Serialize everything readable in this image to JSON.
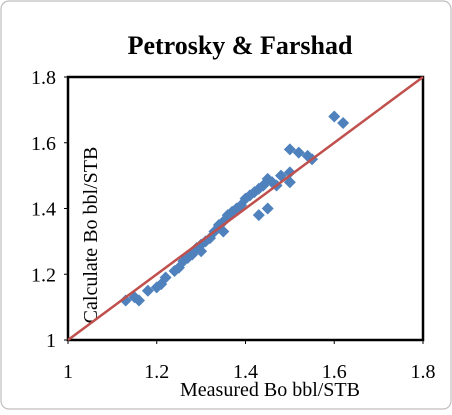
{
  "chart_data": {
    "type": "scatter",
    "title": "Petrosky & Farshad",
    "x_label": "Measured Bo bbl/STB",
    "y_label": "Calculate Bo bbl/STB",
    "xlim": [
      1,
      1.8
    ],
    "ylim": [
      1,
      1.8
    ],
    "xticks": [
      1,
      1.2,
      1.4,
      1.6,
      1.8
    ],
    "yticks": [
      1,
      1.2,
      1.4,
      1.6,
      1.8
    ],
    "grid": false,
    "color": "#4f81bd",
    "x": [
      1.13,
      1.15,
      1.16,
      1.18,
      1.2,
      1.21,
      1.22,
      1.24,
      1.25,
      1.26,
      1.27,
      1.28,
      1.29,
      1.3,
      1.31,
      1.32,
      1.33,
      1.34,
      1.35,
      1.36,
      1.37,
      1.38,
      1.39,
      1.4,
      1.41,
      1.42,
      1.43,
      1.44,
      1.45,
      1.46,
      1.47,
      1.48,
      1.5,
      1.52,
      1.54,
      1.55,
      1.6,
      1.62,
      1.43,
      1.45,
      1.5,
      1.5,
      1.35,
      1.3
    ],
    "values": [
      1.12,
      1.13,
      1.12,
      1.15,
      1.16,
      1.17,
      1.19,
      1.21,
      1.22,
      1.24,
      1.25,
      1.26,
      1.28,
      1.29,
      1.3,
      1.31,
      1.33,
      1.35,
      1.36,
      1.38,
      1.39,
      1.4,
      1.41,
      1.43,
      1.44,
      1.45,
      1.46,
      1.47,
      1.49,
      1.48,
      1.47,
      1.5,
      1.51,
      1.57,
      1.56,
      1.55,
      1.68,
      1.66,
      1.38,
      1.4,
      1.48,
      1.58,
      1.33,
      1.27
    ],
    "line": {
      "x": [
        1,
        1.8
      ],
      "y": [
        1,
        1.8
      ],
      "color": "#c0504d"
    }
  }
}
